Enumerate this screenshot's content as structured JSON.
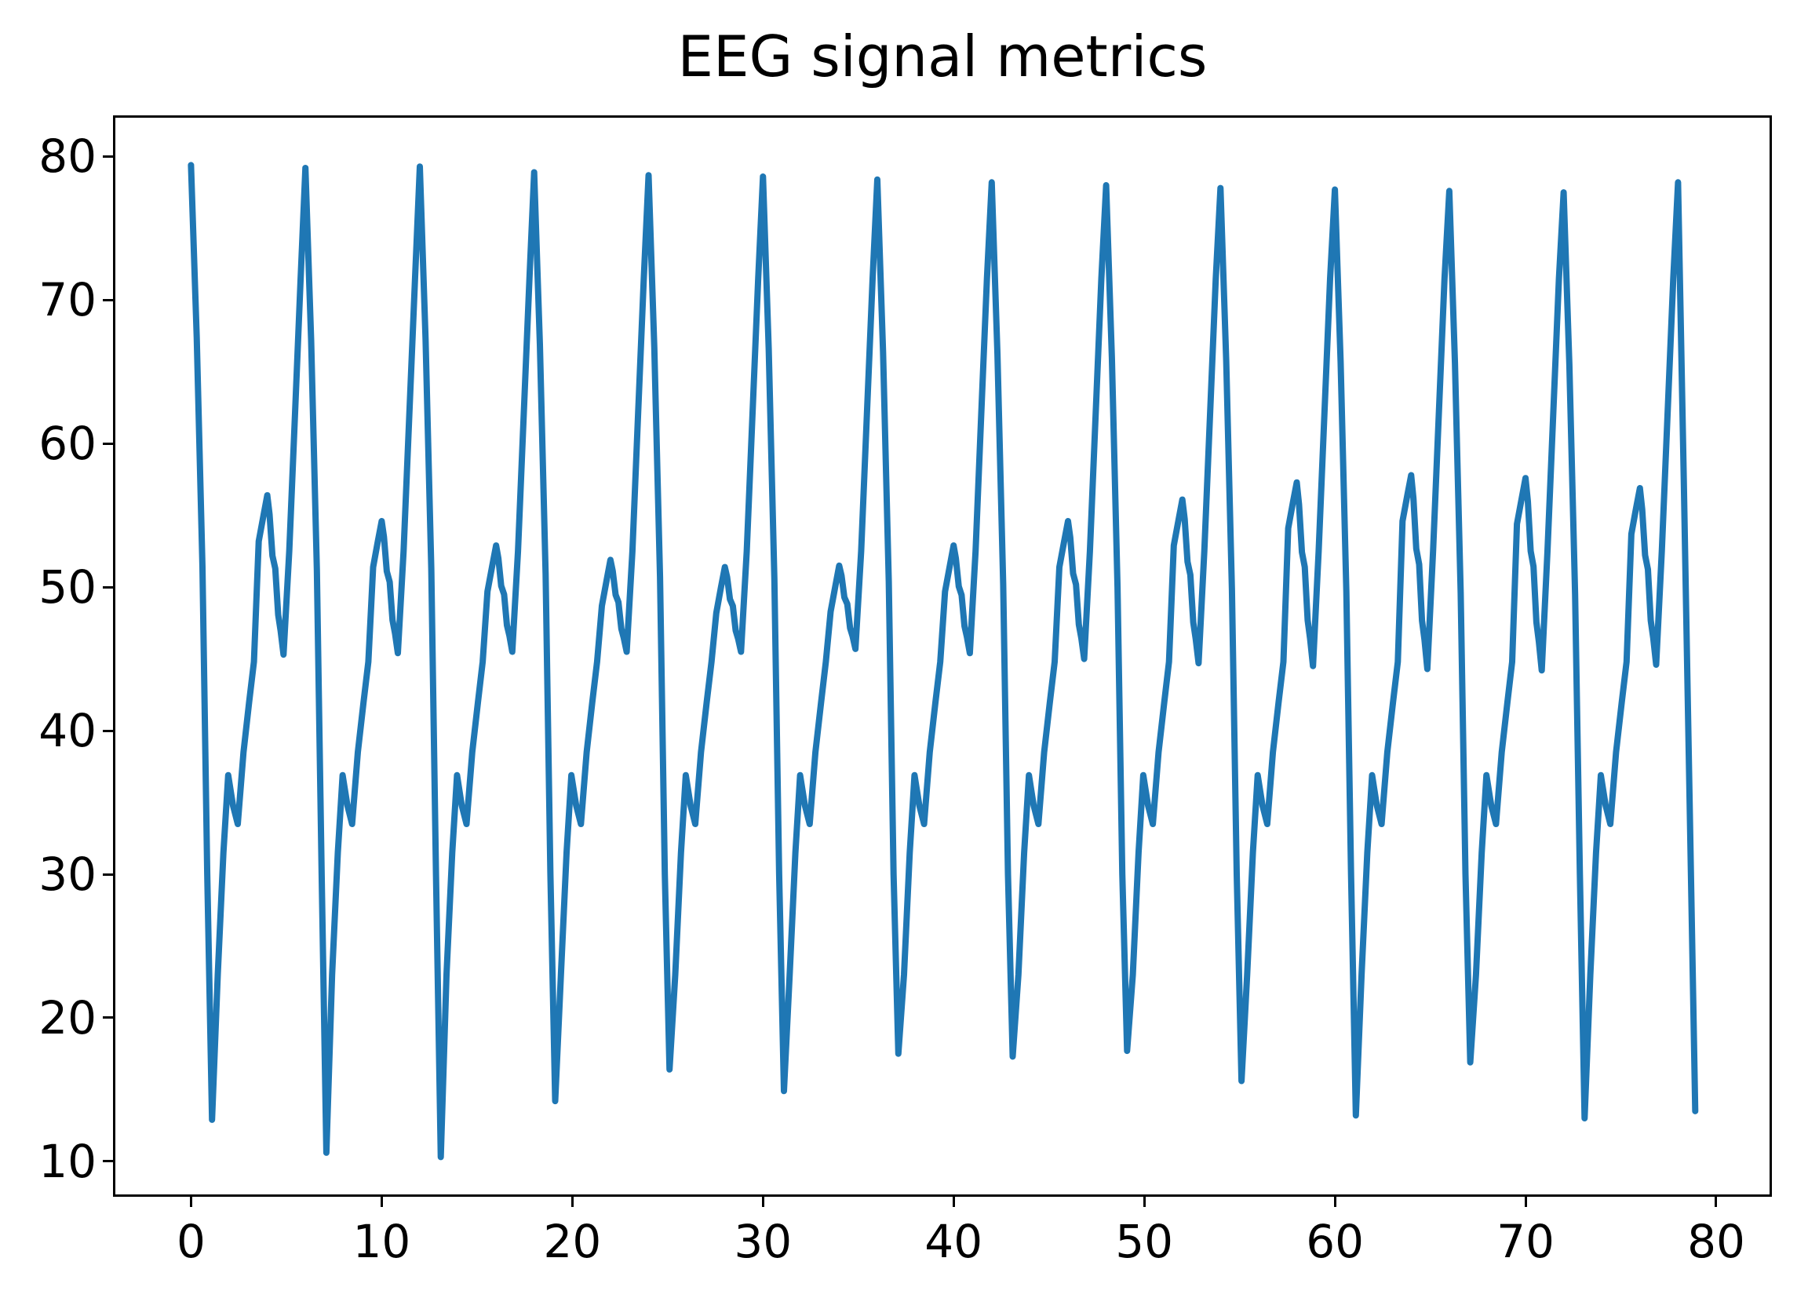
{
  "chart_data": {
    "type": "line",
    "title": "EEG signal metrics",
    "xlabel": "",
    "ylabel": "",
    "legend": null,
    "grid": false,
    "line_color": "#1f77b4",
    "line_width": 8,
    "xlim": [
      -3.97,
      82.8
    ],
    "ylim": [
      7.7,
      82.7
    ],
    "xticks": [
      0,
      10,
      20,
      30,
      40,
      50,
      60,
      70,
      80
    ],
    "yticks": [
      10,
      20,
      30,
      40,
      50,
      60,
      70,
      80
    ],
    "description": "Periodic EEG-like waveform, period 6 on x axis: sharp major peak near 78-79.5, steep drop to a deep minimum near 10-17, small bump ~37 with notch ~33.5, rising staircase to a mid bump ~51-58 with jagged notch ~44-46, then steep climb to the next major peak.",
    "period": 6,
    "peaks": [
      79.4,
      79.2,
      79.3,
      78.9,
      78.7,
      78.6,
      78.4,
      78.2,
      78.0,
      77.8,
      77.7,
      77.6,
      77.5,
      78.2
    ],
    "mins": [
      12.9,
      10.6,
      10.3,
      14.2,
      16.4,
      14.9,
      17.5,
      17.3,
      17.7,
      15.6,
      13.2,
      16.9,
      13.0
    ],
    "bumps": [
      56.4,
      54.6,
      52.9,
      51.9,
      51.4,
      51.5,
      52.9,
      54.6,
      56.1,
      57.3,
      57.8,
      57.6,
      56.9
    ],
    "notches": [
      45.3,
      45.4,
      45.5,
      45.5,
      45.5,
      45.7,
      45.4,
      45.0,
      44.7,
      44.5,
      44.3,
      44.2,
      44.6
    ],
    "low_bump": 36.9,
    "low_notch": 33.5,
    "waveform_template": [
      [
        0.0,
        "P",
        0
      ],
      [
        0.3,
        "P",
        -12
      ],
      [
        0.6,
        "P",
        -28
      ],
      [
        0.85,
        "A",
        30
      ],
      [
        1.1,
        "M",
        0
      ],
      [
        1.4,
        "A",
        23
      ],
      [
        1.7,
        "A",
        31.5
      ],
      [
        1.95,
        "A",
        36.9
      ],
      [
        2.2,
        "A",
        34.8
      ],
      [
        2.45,
        "A",
        33.5
      ],
      [
        2.75,
        "A",
        38.5
      ],
      [
        3.05,
        "A",
        42.0
      ],
      [
        3.3,
        "A",
        44.8
      ],
      [
        3.55,
        "B",
        -3.2
      ],
      [
        3.8,
        "B",
        -1.4
      ],
      [
        4.0,
        "B",
        0
      ],
      [
        4.12,
        "F",
        0.88
      ],
      [
        4.27,
        "F",
        0.62
      ],
      [
        4.42,
        "F",
        0.54
      ],
      [
        4.57,
        "F",
        0.25
      ],
      [
        4.7,
        "F",
        0.15
      ],
      [
        4.85,
        "N",
        0
      ],
      [
        5.15,
        "A",
        52.5
      ],
      [
        5.45,
        "A",
        62.0
      ],
      [
        5.75,
        "A",
        71.5
      ]
    ],
    "tail": [
      [
        78.3,
        57.5
      ],
      [
        78.6,
        35.5
      ],
      [
        78.9,
        13.5
      ]
    ]
  }
}
